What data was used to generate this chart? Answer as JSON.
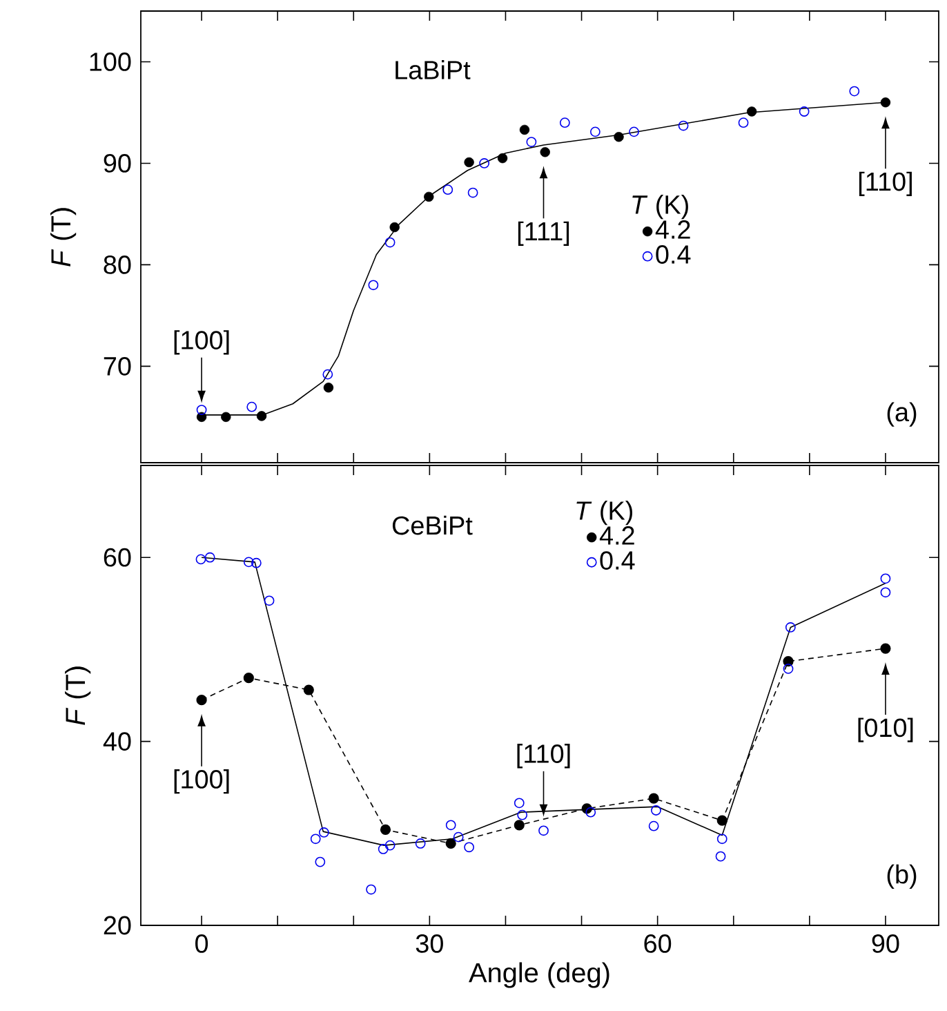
{
  "chart_data": [
    {
      "type": "scatter",
      "title": "LaBiPt",
      "ylabel": "*F* (T)",
      "legend_title": "*T* (K)",
      "legend": "right",
      "tick_labels": "y",
      "xlim": [
        -8,
        97
      ],
      "ylim": [
        60.5,
        105
      ],
      "xticks": [
        0,
        {
          "value": 10,
          "label": null
        },
        {
          "value": 20,
          "label": null
        },
        30,
        {
          "value": 40,
          "label": null
        },
        {
          "value": 50,
          "label": null
        },
        60,
        {
          "value": 70,
          "label": null
        },
        {
          "value": 80,
          "label": null
        },
        90
      ],
      "yticks": [
        70,
        80,
        90,
        100
      ],
      "series": [
        {
          "name": "4.2",
          "marker": "circle",
          "color": "#000000",
          "x": [
            0,
            3.2,
            7.9,
            16.7,
            25.4,
            29.9,
            35.2,
            39.6,
            42.5,
            45.2,
            54.9,
            72.4,
            90.0
          ],
          "values": [
            65.0,
            65.0,
            65.1,
            67.9,
            83.7,
            86.7,
            90.1,
            90.5,
            93.3,
            91.1,
            92.6,
            95.1,
            96.0
          ]
        },
        {
          "name": "0.4",
          "marker": "open circle",
          "color": "#0000ee",
          "x": [
            0,
            6.6,
            16.6,
            22.6,
            24.8,
            32.4,
            35.7,
            37.2,
            43.4,
            47.8,
            51.8,
            56.9,
            63.4,
            71.3,
            79.3,
            85.9
          ],
          "values": [
            65.7,
            66.0,
            69.2,
            78.0,
            82.2,
            87.4,
            87.1,
            90.0,
            92.1,
            94.0,
            93.1,
            93.1,
            93.7,
            94.0,
            95.1,
            97.1
          ]
        },
        {
          "type": "line",
          "marker": "none",
          "line_style": "solid",
          "color": "#000000",
          "x": [
            0,
            8,
            12,
            16,
            18,
            20,
            23,
            26,
            30,
            35,
            40,
            45,
            55,
            72,
            90
          ],
          "values": [
            65.2,
            65.2,
            66.3,
            68.5,
            71,
            75.5,
            81,
            84,
            86.8,
            89.3,
            91,
            91.8,
            92.8,
            95,
            96
          ]
        }
      ],
      "annotations": [
        {
          "text": "[100]",
          "x": 0,
          "y": 65.0
        },
        {
          "text": "[111]",
          "x": 45,
          "y": 91.1
        },
        {
          "text": "[110]",
          "x": 90,
          "y": 96.0
        },
        "(a)"
      ]
    },
    {
      "type": "scatter",
      "title": "CeBiPt",
      "ylabel": "*F* (T)",
      "xlabel": "Angle (deg)",
      "legend_title": "*T* (K)",
      "legend": "top",
      "xlim": [
        -8,
        97
      ],
      "ylim": [
        20,
        70
      ],
      "xticks": [
        0,
        {
          "value": 10,
          "label": null
        },
        {
          "value": 20,
          "label": null
        },
        30,
        {
          "value": 40,
          "label": null
        },
        {
          "value": 50,
          "label": null
        },
        60,
        {
          "value": 70,
          "label": null
        },
        {
          "value": 80,
          "label": null
        },
        90
      ],
      "yticks": [
        20,
        40,
        60
      ],
      "series": [
        {
          "name": "4.2",
          "type": "line",
          "line_style": "dashed",
          "marker": "circle",
          "color": "#000000",
          "x": [
            0,
            6.2,
            14.1,
            24.2,
            32.8,
            41.8,
            50.7,
            59.5,
            68.5,
            77.2,
            90.0
          ],
          "values": [
            44.5,
            46.9,
            45.6,
            30.4,
            28.9,
            30.9,
            32.7,
            33.8,
            31.4,
            48.7,
            50.1
          ]
        },
        {
          "name": "0.4",
          "marker": "open circle",
          "color": "#0000ee",
          "x": [
            -0.1,
            1.1,
            6.2,
            7.2,
            8.9,
            15.0,
            16.1,
            15.6,
            22.3,
            23.9,
            24.8,
            28.8,
            32.8,
            33.8,
            35.2,
            41.8,
            42.2,
            45.0,
            51.2,
            59.8,
            59.5,
            68.5,
            68.3,
            77.5,
            77.2,
            90.0,
            90.0
          ],
          "values": [
            59.8,
            60.0,
            59.5,
            59.4,
            55.3,
            29.4,
            30.1,
            26.9,
            23.9,
            28.3,
            28.7,
            28.9,
            30.9,
            29.6,
            28.5,
            33.3,
            32.0,
            30.3,
            32.3,
            32.5,
            30.8,
            29.4,
            27.5,
            52.4,
            47.9,
            57.7,
            56.2
          ]
        },
        {
          "type": "line",
          "marker": "none",
          "line_style": "solid",
          "color": "#000000",
          "x": [
            0,
            7,
            16,
            24,
            33,
            42,
            51,
            60,
            68.5,
            77.5,
            90
          ],
          "values": [
            60,
            59.5,
            30.2,
            28.7,
            29.4,
            32.3,
            32.6,
            32.9,
            29.8,
            52.4,
            57.2
          ]
        }
      ],
      "annotations": [
        {
          "text": "[100]",
          "x": 0,
          "y": 44.5
        },
        {
          "text": "[110]",
          "x": 45,
          "y": 30.3
        },
        {
          "text": "[010]",
          "x": 90,
          "y": 50.1
        },
        "(b)"
      ]
    }
  ]
}
